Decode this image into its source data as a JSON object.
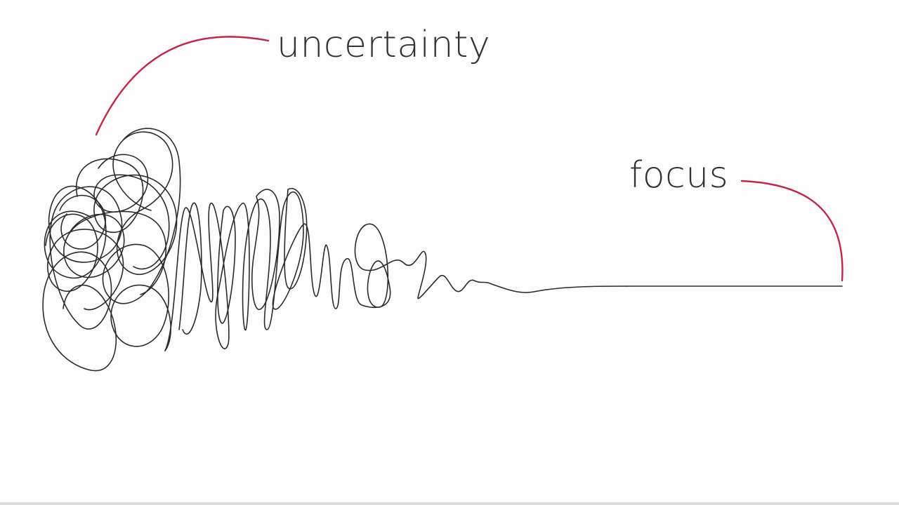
{
  "labels": {
    "uncertainty": "uncertainty",
    "focus": "focus"
  },
  "colors": {
    "background": "#fdfdfd",
    "scribble": "#2b2b2b",
    "callout": "#c0284a",
    "text": "#333333"
  }
}
